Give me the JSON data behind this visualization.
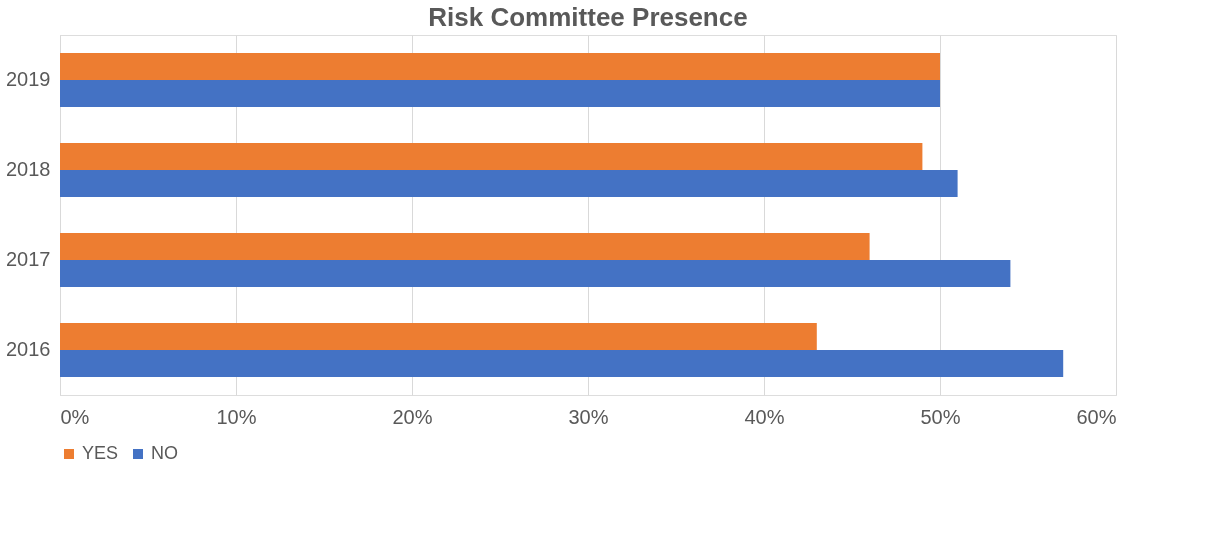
{
  "chart_data": {
    "type": "bar",
    "orientation": "horizontal",
    "title": "Risk Committee Presence",
    "categories": [
      "2019",
      "2018",
      "2017",
      "2016"
    ],
    "series": [
      {
        "name": "YES",
        "color": "#ed7d31",
        "values": [
          50,
          49,
          46,
          43
        ]
      },
      {
        "name": "NO",
        "color": "#4472c4",
        "values": [
          50,
          51,
          54,
          57
        ]
      }
    ],
    "xlim": [
      0,
      60
    ],
    "xticks": [
      {
        "value": 0,
        "label": "0%"
      },
      {
        "value": 10,
        "label": "10%"
      },
      {
        "value": 20,
        "label": "20%"
      },
      {
        "value": 30,
        "label": "30%"
      },
      {
        "value": 40,
        "label": "40%"
      },
      {
        "value": 50,
        "label": "50%"
      },
      {
        "value": 60,
        "label": "60%"
      }
    ],
    "grid": "x",
    "legend": "bottom"
  }
}
